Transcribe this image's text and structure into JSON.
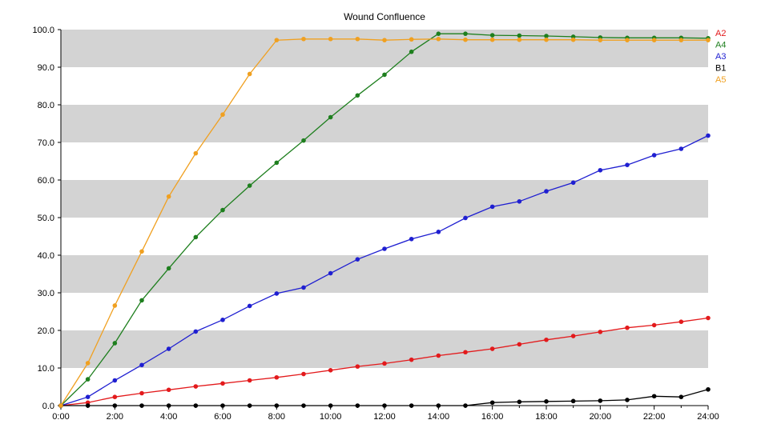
{
  "chart_data": {
    "type": "line",
    "title": "Wound Confluence",
    "xlabel": "",
    "ylabel": "",
    "x": [
      "0:00",
      "1:00",
      "2:00",
      "3:00",
      "4:00",
      "5:00",
      "6:00",
      "7:00",
      "8:00",
      "9:00",
      "10:00",
      "11:00",
      "12:00",
      "13:00",
      "14:00",
      "15:00",
      "16:00",
      "17:00",
      "18:00",
      "19:00",
      "20:00",
      "21:00",
      "22:00",
      "23:00",
      "24:00"
    ],
    "x_tick_labels": [
      "0:00",
      "2:00",
      "4:00",
      "6:00",
      "8:00",
      "10:00",
      "12:00",
      "14:00",
      "16:00",
      "18:00",
      "20:00",
      "22:00",
      "24:00"
    ],
    "y_tick_labels": [
      "0.0",
      "10.0",
      "20.0",
      "30.0",
      "40.0",
      "50.0",
      "60.0",
      "70.0",
      "80.0",
      "90.0",
      "100.0"
    ],
    "ylim": [
      0,
      100
    ],
    "xlim": [
      "0:00",
      "24:00"
    ],
    "grid": "alternating horizontal gray bands",
    "legend_position": "right",
    "series": [
      {
        "name": "A2",
        "color": "#e31a1c",
        "values": [
          0,
          0.8,
          2.3,
          3.3,
          4.2,
          5.1,
          5.9,
          6.7,
          7.5,
          8.4,
          9.4,
          10.4,
          11.2,
          12.2,
          13.3,
          14.2,
          15.1,
          16.3,
          17.5,
          18.5,
          19.6,
          20.7,
          21.4,
          22.3,
          23.3
        ]
      },
      {
        "name": "A4",
        "color": "#1e7f1e",
        "values": [
          0,
          7.0,
          16.6,
          28.0,
          36.5,
          44.8,
          52.0,
          58.5,
          64.6,
          70.5,
          76.7,
          82.5,
          88.0,
          94.1,
          98.9,
          98.9,
          98.5,
          98.4,
          98.3,
          98.1,
          97.9,
          97.8,
          97.8,
          97.8,
          97.7
        ]
      },
      {
        "name": "A3",
        "color": "#1f1fd1",
        "values": [
          0,
          2.3,
          6.7,
          10.8,
          15.1,
          19.7,
          22.8,
          26.5,
          29.8,
          31.4,
          35.2,
          38.9,
          41.7,
          44.3,
          46.2,
          49.9,
          52.9,
          54.3,
          57.0,
          59.3,
          62.6,
          64.0,
          66.6,
          68.3,
          71.8
        ]
      },
      {
        "name": "B1",
        "color": "#000000",
        "values": [
          0,
          0,
          0,
          0,
          0,
          0,
          0,
          0,
          0,
          0,
          0,
          0,
          0,
          0,
          0,
          0,
          0.8,
          1.0,
          1.1,
          1.2,
          1.3,
          1.5,
          2.5,
          2.3,
          4.3
        ]
      },
      {
        "name": "A5",
        "color": "#f0a020",
        "values": [
          0,
          11.3,
          26.6,
          41.0,
          55.6,
          67.1,
          77.4,
          88.2,
          97.2,
          97.5,
          97.5,
          97.5,
          97.2,
          97.4,
          97.5,
          97.3,
          97.3,
          97.3,
          97.3,
          97.3,
          97.2,
          97.2,
          97.2,
          97.2,
          97.2
        ]
      }
    ]
  }
}
